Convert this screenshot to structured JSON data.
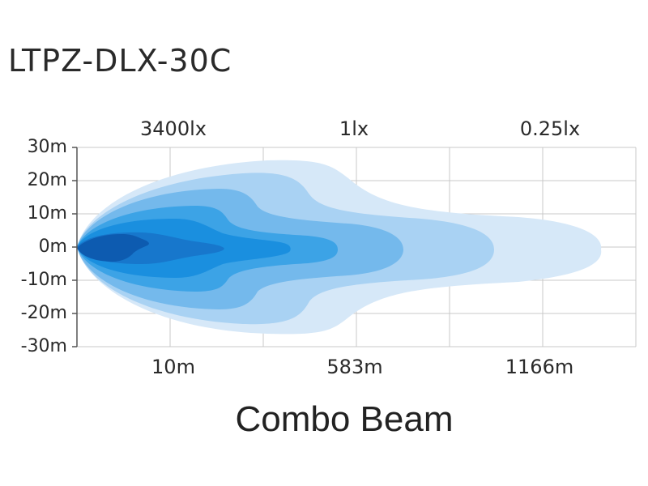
{
  "chart_data": {
    "type": "area",
    "title": "LTPZ-DLX-30C",
    "caption": "Combo Beam",
    "lux_labels": [
      "3400lx",
      "1lx",
      "0.25lx"
    ],
    "y_ticks": [
      "30m",
      "20m",
      "10m",
      "0m",
      "-10m",
      "-20m",
      "-30m"
    ],
    "y_values": [
      30,
      20,
      10,
      0,
      -10,
      -20,
      -30
    ],
    "ylim": [
      -30,
      30
    ],
    "distance_labels": [
      "10m",
      "583m",
      "1166m"
    ],
    "grid": true,
    "contour_colors": [
      "#d6e8f8",
      "#a9d2f3",
      "#74b9ec",
      "#3ca3e6",
      "#1a8fdf",
      "#1777cc",
      "#0d5bb0"
    ],
    "contour_legend": [
      "0.25lx",
      "1lx",
      "",
      "",
      "",
      "",
      "3400lx"
    ]
  }
}
